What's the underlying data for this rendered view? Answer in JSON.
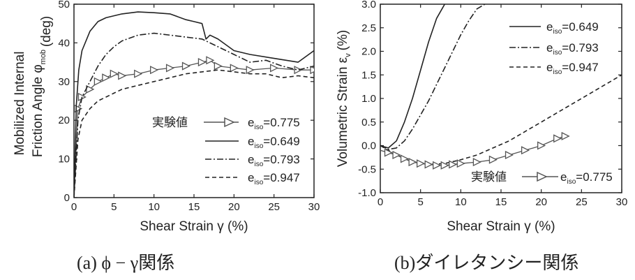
{
  "captions": {
    "a": "(a)  ϕ − γ関係",
    "b": "(b)ダイレタンシー関係"
  },
  "colors": {
    "axis": "#222222",
    "series": "#222222",
    "experiment": "#555555"
  },
  "chart_data": [
    {
      "type": "line",
      "xlabel": "Shear Strain  γ (%)",
      "ylabel_line1": "Mobilized Internal",
      "ylabel_line2": "Friction Angle φ",
      "ylabel_sub": "mob",
      "ylabel_unit": "(deg)",
      "xlim": [
        0,
        30
      ],
      "ylim": [
        0,
        50
      ],
      "xticks": [
        0,
        5,
        10,
        15,
        20,
        25,
        30
      ],
      "yticks": [
        0,
        10,
        20,
        30,
        40,
        50
      ],
      "grid": false,
      "legend_position": "bottom-right",
      "legend": [
        {
          "prefix": "実験値",
          "label": "e",
          "sub": "iso",
          "value": "=0.775",
          "style": "experiment"
        },
        {
          "prefix": "",
          "label": "e",
          "sub": "iso",
          "value": "=0.649",
          "style": "solid"
        },
        {
          "prefix": "",
          "label": "e",
          "sub": "iso",
          "value": "=0.793",
          "style": "dashdot"
        },
        {
          "prefix": "",
          "label": "e",
          "sub": "iso",
          "value": "=0.947",
          "style": "dashed"
        }
      ],
      "series": [
        {
          "style": "experiment",
          "x": [
            0,
            0.5,
            1,
            2,
            3,
            4,
            5,
            6,
            8,
            10,
            12,
            14,
            16,
            17,
            18,
            20,
            22,
            25,
            28,
            30
          ],
          "y": [
            0,
            23,
            26,
            28,
            30,
            31,
            32,
            31.5,
            32,
            33,
            33.5,
            34,
            35,
            35.5,
            34,
            33.5,
            33,
            33.5,
            33,
            33
          ]
        },
        {
          "style": "solid",
          "x": [
            0,
            0.3,
            0.6,
            1,
            2,
            3,
            4,
            5,
            6,
            8,
            10,
            12,
            14,
            15,
            16,
            16.5,
            17,
            18,
            20,
            22,
            25,
            28,
            30
          ],
          "y": [
            0,
            24,
            33,
            38,
            43,
            45.5,
            46.5,
            47,
            47.5,
            48,
            47.8,
            47.5,
            46,
            45.5,
            45,
            41,
            42,
            41,
            38,
            37,
            36,
            35,
            38
          ]
        },
        {
          "style": "dashdot",
          "x": [
            0,
            0.5,
            1,
            2,
            3,
            4,
            5,
            6,
            8,
            10,
            12,
            14,
            16,
            18,
            20,
            22,
            24,
            26,
            28,
            30
          ],
          "y": [
            0,
            20,
            26,
            30,
            34,
            37,
            39,
            40.5,
            42,
            42.5,
            42,
            41.5,
            41,
            39,
            37,
            35,
            35.5,
            34,
            33,
            34
          ]
        },
        {
          "style": "dashed",
          "x": [
            0,
            0.5,
            1,
            2,
            3,
            4,
            5,
            6,
            8,
            10,
            12,
            14,
            16,
            18,
            20,
            22,
            24,
            26,
            28,
            30
          ],
          "y": [
            0,
            15,
            20,
            23,
            25,
            26,
            27,
            28,
            29,
            30,
            31,
            32,
            32.5,
            33,
            32.5,
            32,
            32,
            31,
            31.5,
            31
          ]
        }
      ]
    },
    {
      "type": "line",
      "xlabel": "Shear Strain  γ (%)",
      "ylabel": "Volumetric Strain  ε",
      "ylabel_sub": "v",
      "ylabel_unit": "(%)",
      "xlim": [
        0,
        30
      ],
      "ylim": [
        -1.0,
        3.0
      ],
      "xticks": [
        0,
        5,
        10,
        15,
        20,
        25,
        30
      ],
      "yticks": [
        -1.0,
        -0.5,
        0.0,
        0.5,
        1.0,
        1.5,
        2.0,
        2.5,
        3.0
      ],
      "ytick_labels": [
        "-1.0",
        "-0.5",
        "0.0",
        "0.5",
        "1.0",
        "1.5",
        "2.0",
        "2.5",
        "3.0"
      ],
      "grid": false,
      "legend_position": "top-right",
      "legend": [
        {
          "prefix": "",
          "label": "e",
          "sub": "iso",
          "value": "=0.649",
          "style": "solid"
        },
        {
          "prefix": "",
          "label": "e",
          "sub": "iso",
          "value": "=0.793",
          "style": "dashdot"
        },
        {
          "prefix": "",
          "label": "e",
          "sub": "iso",
          "value": "=0.947",
          "style": "dashed"
        }
      ],
      "legend2": {
        "prefix": "実験値",
        "label": "e",
        "sub": "iso",
        "value": "=0.775",
        "style": "experiment",
        "position": "bottom-right"
      },
      "series": [
        {
          "style": "solid",
          "x": [
            0,
            1,
            2,
            3,
            4,
            5,
            6,
            7,
            8
          ],
          "y": [
            0,
            -0.05,
            0.1,
            0.5,
            1.0,
            1.6,
            2.2,
            2.7,
            3.0
          ]
        },
        {
          "style": "dashdot",
          "x": [
            0,
            1,
            2,
            3,
            4,
            5,
            6,
            7,
            8,
            9,
            10,
            11,
            12,
            13
          ],
          "y": [
            0,
            -0.08,
            -0.05,
            0.1,
            0.35,
            0.65,
            0.95,
            1.3,
            1.65,
            2.0,
            2.35,
            2.65,
            2.9,
            3.0
          ]
        },
        {
          "style": "dashed",
          "x": [
            0,
            2,
            4,
            6,
            8,
            10,
            12,
            14,
            16,
            18,
            20,
            22,
            24,
            26,
            28,
            30
          ],
          "y": [
            0,
            -0.2,
            -0.35,
            -0.4,
            -0.38,
            -0.3,
            -0.2,
            -0.05,
            0.1,
            0.3,
            0.5,
            0.7,
            0.9,
            1.1,
            1.3,
            1.5
          ]
        },
        {
          "style": "experiment",
          "x": [
            0,
            1,
            2,
            3,
            4,
            5,
            6,
            7,
            8,
            9,
            10,
            12,
            14,
            16,
            18,
            20,
            22,
            23
          ],
          "y": [
            -0.1,
            -0.15,
            -0.2,
            -0.28,
            -0.35,
            -0.38,
            -0.4,
            -0.42,
            -0.42,
            -0.4,
            -0.38,
            -0.35,
            -0.3,
            -0.2,
            -0.1,
            0.0,
            0.15,
            0.2
          ]
        }
      ]
    }
  ]
}
